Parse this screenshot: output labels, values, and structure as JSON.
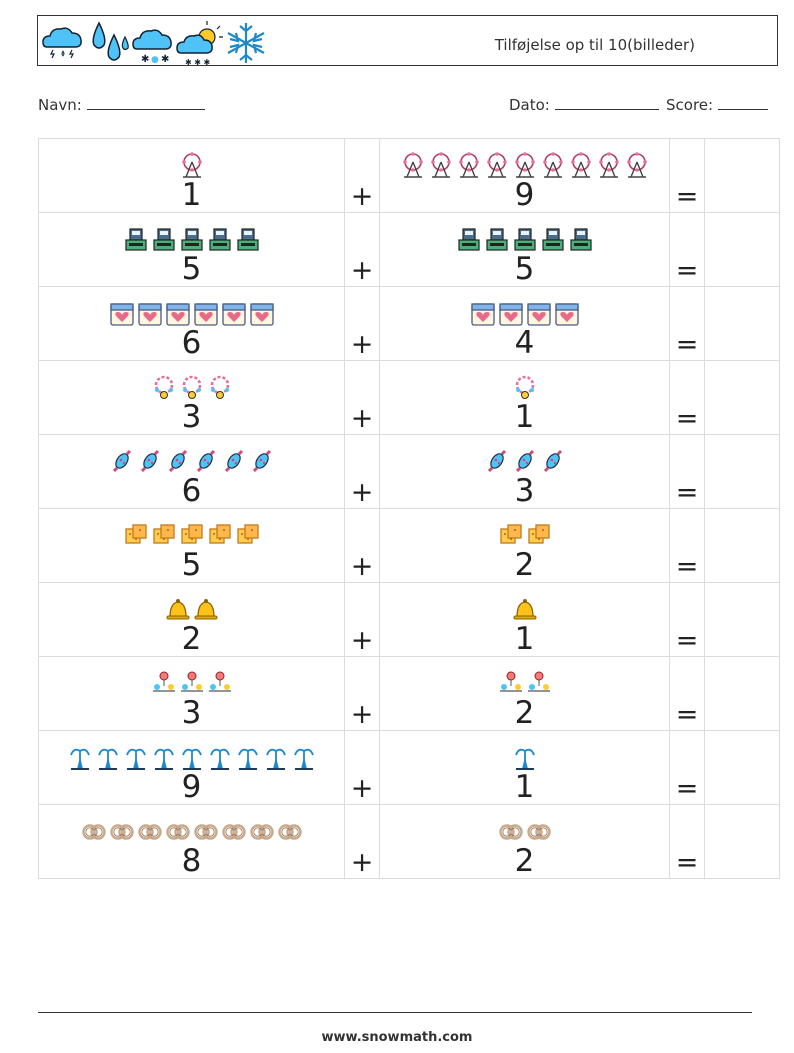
{
  "header": {
    "title": "Tilføjelse op til 10(billeder)",
    "logo_icons": [
      "cloud-lightning-rain-icon",
      "raindrops-icon",
      "cloud-snow-icon",
      "cloud-sun-icon",
      "snowflake-icon"
    ]
  },
  "meta": {
    "name_label": "Navn:",
    "date_label": "Dato:",
    "score_label": "Score:"
  },
  "operators": {
    "plus": "+",
    "equals": "="
  },
  "rows": [
    {
      "left": {
        "count": 1,
        "label": "1",
        "icon": "ferris-wheel-icon"
      },
      "right": {
        "count": 9,
        "label": "9",
        "icon": "ferris-wheel-icon"
      }
    },
    {
      "left": {
        "count": 5,
        "label": "5",
        "icon": "cash-register-icon"
      },
      "right": {
        "count": 5,
        "label": "5",
        "icon": "cash-register-icon"
      }
    },
    {
      "left": {
        "count": 6,
        "label": "6",
        "icon": "heart-calendar-icon"
      },
      "right": {
        "count": 4,
        "label": "4",
        "icon": "heart-calendar-icon"
      }
    },
    {
      "left": {
        "count": 3,
        "label": "3",
        "icon": "bead-necklace-icon"
      },
      "right": {
        "count": 1,
        "label": "1",
        "icon": "bead-necklace-icon"
      }
    },
    {
      "left": {
        "count": 6,
        "label": "6",
        "icon": "candy-icon"
      },
      "right": {
        "count": 3,
        "label": "3",
        "icon": "candy-icon"
      }
    },
    {
      "left": {
        "count": 5,
        "label": "5",
        "icon": "cracker-icon"
      },
      "right": {
        "count": 2,
        "label": "2",
        "icon": "cracker-icon"
      }
    },
    {
      "left": {
        "count": 2,
        "label": "2",
        "icon": "bell-icon"
      },
      "right": {
        "count": 1,
        "label": "1",
        "icon": "bell-icon"
      }
    },
    {
      "left": {
        "count": 3,
        "label": "3",
        "icon": "ornament-garland-icon"
      },
      "right": {
        "count": 2,
        "label": "2",
        "icon": "ornament-garland-icon"
      }
    },
    {
      "left": {
        "count": 9,
        "label": "9",
        "icon": "fountain-icon"
      },
      "right": {
        "count": 1,
        "label": "1",
        "icon": "fountain-icon"
      }
    },
    {
      "left": {
        "count": 8,
        "label": "8",
        "icon": "wedding-rings-icon"
      },
      "right": {
        "count": 2,
        "label": "2",
        "icon": "wedding-rings-icon"
      }
    }
  ],
  "footer": {
    "url": "www.snowmath.com"
  }
}
